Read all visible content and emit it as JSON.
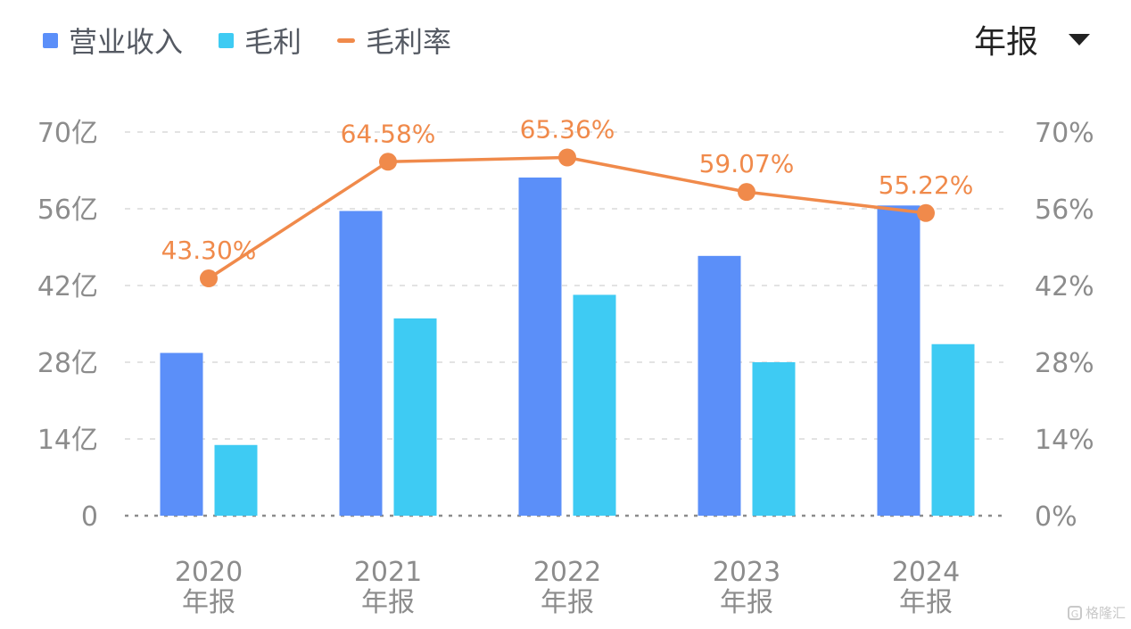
{
  "legend": {
    "revenue": "营业收入",
    "gross_profit": "毛利",
    "gross_margin": "毛利率"
  },
  "period_selector": {
    "label": "年报"
  },
  "colors": {
    "revenue": "#5b8ff9",
    "gross_profit": "#3ecbf3",
    "gross_margin": "#f08a4b",
    "axis_text": "#8c8c8c",
    "grid": "#e3e3e3"
  },
  "watermark": {
    "text": "格隆汇"
  },
  "chart_data": {
    "type": "bar",
    "categories": [
      "2020",
      "2021",
      "2022",
      "2023",
      "2024"
    ],
    "category_suffix": "年报",
    "series": [
      {
        "name": "营业收入",
        "type": "bar",
        "values": [
          29.7,
          55.6,
          61.7,
          47.4,
          56.6
        ]
      },
      {
        "name": "毛利",
        "type": "bar",
        "values": [
          12.9,
          36.0,
          40.3,
          28.0,
          31.3
        ]
      },
      {
        "name": "毛利率",
        "type": "line",
        "axis": "right",
        "values": [
          43.3,
          64.58,
          65.36,
          59.07,
          55.22
        ],
        "labels": [
          "43.30%",
          "64.58%",
          "65.36%",
          "59.07%",
          "55.22%"
        ]
      }
    ],
    "y_left": {
      "ticks": [
        "0",
        "14亿",
        "28亿",
        "42亿",
        "56亿",
        "70亿"
      ],
      "range": [
        0,
        70
      ]
    },
    "y_right": {
      "ticks": [
        "0%",
        "14%",
        "28%",
        "42%",
        "56%",
        "70%"
      ],
      "range": [
        0,
        70
      ]
    },
    "grid": true,
    "legend_position": "top-left"
  }
}
